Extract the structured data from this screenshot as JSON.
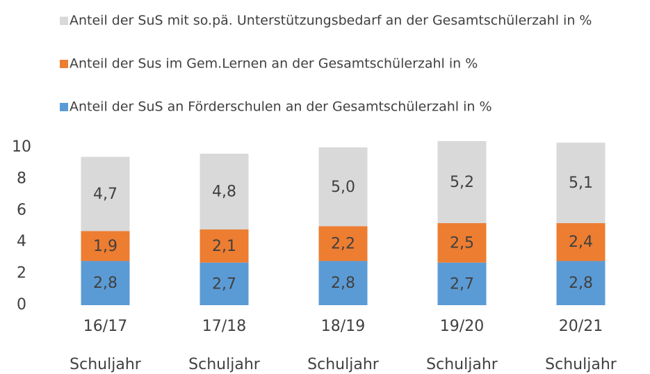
{
  "chart_data": {
    "type": "stacked_bar",
    "categories": [
      [
        "16/17",
        "Schuljahr"
      ],
      [
        "17/18",
        "Schuljahr"
      ],
      [
        "18/19",
        "Schuljahr"
      ],
      [
        "19/20",
        "Schuljahr"
      ],
      [
        "20/21",
        "Schuljahr"
      ]
    ],
    "series": [
      {
        "name": "Anteil der SuS an Förderschulen an der Gesamtschülerzahl in %",
        "color": "#5b9bd5",
        "values": [
          2.8,
          2.7,
          2.8,
          2.7,
          2.8
        ],
        "value_labels": [
          "2,8",
          "2,7",
          "2,8",
          "2,7",
          "2,8"
        ]
      },
      {
        "name": "Anteil der Sus im Gem.Lernen an der Gesamtschülerzahl in %",
        "color": "#ed7d31",
        "values": [
          1.9,
          2.1,
          2.2,
          2.5,
          2.4
        ],
        "value_labels": [
          "1,9",
          "2,1",
          "2,2",
          "2,5",
          "2,4"
        ]
      },
      {
        "name": "Anteil der SuS mit so.pä. Unterstützungsbedarf an der Gesamtschülerzahl in %",
        "color": "#d9d9d9",
        "values": [
          4.7,
          4.8,
          5.0,
          5.2,
          5.1
        ],
        "value_labels": [
          "4,7",
          "4,8",
          "5,0",
          "5,2",
          "5,1"
        ]
      }
    ],
    "ylim": [
      0,
      10
    ],
    "yticks": [
      0,
      2,
      4,
      6,
      8,
      10
    ],
    "grid": false,
    "legend": "top"
  }
}
